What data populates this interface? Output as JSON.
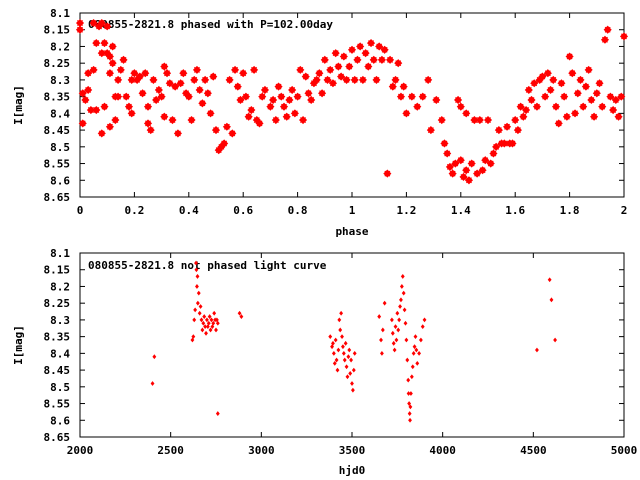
{
  "chart_data": [
    {
      "type": "scatter",
      "title": "080855-2821.8 phased with P=102.00day",
      "xlabel": "phase",
      "ylabel": "I[mag]",
      "xlim": [
        0,
        2
      ],
      "ylim": [
        8.1,
        8.65
      ],
      "y_inverted": true,
      "grid": false,
      "color": "#ff0000",
      "marker": "star",
      "x_ticks": [
        "0",
        "0.2",
        "0.4",
        "0.6",
        "0.8",
        "1",
        "1.2",
        "1.4",
        "1.6",
        "1.8",
        "2"
      ],
      "y_ticks": [
        "8.1",
        "8.15",
        "8.2",
        "8.25",
        "8.3",
        "8.35",
        "8.4",
        "8.45",
        "8.5",
        "8.55",
        "8.6",
        "8.65"
      ],
      "points": [
        [
          0.0,
          8.13
        ],
        [
          0.0,
          8.15
        ],
        [
          0.01,
          8.34
        ],
        [
          0.01,
          8.43
        ],
        [
          0.02,
          8.36
        ],
        [
          0.03,
          8.28
        ],
        [
          0.03,
          8.33
        ],
        [
          0.04,
          8.39
        ],
        [
          0.05,
          8.13
        ],
        [
          0.05,
          8.27
        ],
        [
          0.06,
          8.19
        ],
        [
          0.06,
          8.39
        ],
        [
          0.07,
          8.14
        ],
        [
          0.08,
          8.46
        ],
        [
          0.08,
          8.13
        ],
        [
          0.08,
          8.22
        ],
        [
          0.09,
          8.19
        ],
        [
          0.09,
          8.38
        ],
        [
          0.1,
          8.14
        ],
        [
          0.1,
          8.22
        ],
        [
          0.11,
          8.23
        ],
        [
          0.11,
          8.28
        ],
        [
          0.11,
          8.44
        ],
        [
          0.12,
          8.2
        ],
        [
          0.12,
          8.25
        ],
        [
          0.13,
          8.35
        ],
        [
          0.13,
          8.42
        ],
        [
          0.14,
          8.3
        ],
        [
          0.14,
          8.35
        ],
        [
          0.15,
          8.27
        ],
        [
          0.16,
          8.24
        ],
        [
          0.17,
          8.35
        ],
        [
          0.18,
          8.38
        ],
        [
          0.19,
          8.4
        ],
        [
          0.19,
          8.3
        ],
        [
          0.2,
          8.28
        ],
        [
          0.21,
          8.3
        ],
        [
          0.22,
          8.29
        ],
        [
          0.23,
          8.34
        ],
        [
          0.24,
          8.28
        ],
        [
          0.25,
          8.38
        ],
        [
          0.25,
          8.43
        ],
        [
          0.26,
          8.45
        ],
        [
          0.27,
          8.3
        ],
        [
          0.28,
          8.36
        ],
        [
          0.29,
          8.33
        ],
        [
          0.3,
          8.35
        ],
        [
          0.31,
          8.26
        ],
        [
          0.31,
          8.41
        ],
        [
          0.32,
          8.28
        ],
        [
          0.33,
          8.31
        ],
        [
          0.34,
          8.42
        ],
        [
          0.35,
          8.32
        ],
        [
          0.36,
          8.46
        ],
        [
          0.37,
          8.31
        ],
        [
          0.38,
          8.28
        ],
        [
          0.39,
          8.34
        ],
        [
          0.4,
          8.35
        ],
        [
          0.41,
          8.42
        ],
        [
          0.42,
          8.3
        ],
        [
          0.43,
          8.27
        ],
        [
          0.44,
          8.33
        ],
        [
          0.45,
          8.37
        ],
        [
          0.46,
          8.3
        ],
        [
          0.47,
          8.34
        ],
        [
          0.48,
          8.4
        ],
        [
          0.49,
          8.29
        ],
        [
          0.5,
          8.45
        ],
        [
          0.51,
          8.51
        ],
        [
          0.52,
          8.5
        ],
        [
          0.53,
          8.49
        ],
        [
          0.54,
          8.44
        ],
        [
          0.55,
          8.3
        ],
        [
          0.56,
          8.46
        ],
        [
          0.57,
          8.27
        ],
        [
          0.58,
          8.32
        ],
        [
          0.59,
          8.36
        ],
        [
          0.6,
          8.28
        ],
        [
          0.61,
          8.35
        ],
        [
          0.62,
          8.41
        ],
        [
          0.63,
          8.39
        ],
        [
          0.64,
          8.27
        ],
        [
          0.65,
          8.42
        ],
        [
          0.66,
          8.43
        ],
        [
          0.67,
          8.35
        ],
        [
          0.68,
          8.33
        ],
        [
          0.7,
          8.38
        ],
        [
          0.71,
          8.36
        ],
        [
          0.72,
          8.42
        ],
        [
          0.73,
          8.32
        ],
        [
          0.74,
          8.35
        ],
        [
          0.75,
          8.38
        ],
        [
          0.76,
          8.41
        ],
        [
          0.77,
          8.36
        ],
        [
          0.78,
          8.33
        ],
        [
          0.79,
          8.4
        ],
        [
          0.8,
          8.35
        ],
        [
          0.81,
          8.27
        ],
        [
          0.82,
          8.42
        ],
        [
          0.83,
          8.29
        ],
        [
          0.84,
          8.34
        ],
        [
          0.85,
          8.36
        ],
        [
          0.86,
          8.31
        ],
        [
          0.87,
          8.3
        ],
        [
          0.88,
          8.28
        ],
        [
          0.89,
          8.34
        ],
        [
          0.9,
          8.24
        ],
        [
          0.91,
          8.3
        ],
        [
          0.92,
          8.27
        ],
        [
          0.93,
          8.31
        ],
        [
          0.94,
          8.22
        ],
        [
          0.95,
          8.26
        ],
        [
          0.96,
          8.29
        ],
        [
          0.97,
          8.23
        ],
        [
          0.98,
          8.3
        ],
        [
          0.99,
          8.26
        ],
        [
          1.0,
          8.21
        ],
        [
          1.01,
          8.3
        ],
        [
          1.02,
          8.24
        ],
        [
          1.03,
          8.2
        ],
        [
          1.04,
          8.3
        ],
        [
          1.05,
          8.22
        ],
        [
          1.06,
          8.26
        ],
        [
          1.07,
          8.19
        ],
        [
          1.08,
          8.24
        ],
        [
          1.09,
          8.3
        ],
        [
          1.1,
          8.2
        ],
        [
          1.11,
          8.24
        ],
        [
          1.12,
          8.21
        ],
        [
          1.13,
          8.58
        ],
        [
          1.14,
          8.24
        ],
        [
          1.15,
          8.32
        ],
        [
          1.16,
          8.3
        ],
        [
          1.17,
          8.25
        ],
        [
          1.18,
          8.35
        ],
        [
          1.19,
          8.32
        ],
        [
          1.2,
          8.4
        ],
        [
          1.22,
          8.35
        ],
        [
          1.24,
          8.38
        ],
        [
          1.26,
          8.35
        ],
        [
          1.28,
          8.3
        ],
        [
          1.29,
          8.45
        ],
        [
          1.31,
          8.36
        ],
        [
          1.33,
          8.42
        ],
        [
          1.34,
          8.49
        ],
        [
          1.35,
          8.52
        ],
        [
          1.36,
          8.56
        ],
        [
          1.37,
          8.58
        ],
        [
          1.38,
          8.55
        ],
        [
          1.39,
          8.36
        ],
        [
          1.4,
          8.54
        ],
        [
          1.4,
          8.38
        ],
        [
          1.41,
          8.59
        ],
        [
          1.42,
          8.57
        ],
        [
          1.42,
          8.4
        ],
        [
          1.43,
          8.6
        ],
        [
          1.44,
          8.55
        ],
        [
          1.45,
          8.42
        ],
        [
          1.46,
          8.58
        ],
        [
          1.47,
          8.42
        ],
        [
          1.48,
          8.57
        ],
        [
          1.49,
          8.54
        ],
        [
          1.5,
          8.42
        ],
        [
          1.51,
          8.55
        ],
        [
          1.52,
          8.52
        ],
        [
          1.53,
          8.5
        ],
        [
          1.54,
          8.45
        ],
        [
          1.55,
          8.49
        ],
        [
          1.56,
          8.49
        ],
        [
          1.57,
          8.44
        ],
        [
          1.58,
          8.49
        ],
        [
          1.59,
          8.49
        ],
        [
          1.6,
          8.42
        ],
        [
          1.61,
          8.45
        ],
        [
          1.62,
          8.38
        ],
        [
          1.63,
          8.41
        ],
        [
          1.64,
          8.39
        ],
        [
          1.65,
          8.33
        ],
        [
          1.66,
          8.36
        ],
        [
          1.67,
          8.31
        ],
        [
          1.68,
          8.38
        ],
        [
          1.69,
          8.3
        ],
        [
          1.7,
          8.29
        ],
        [
          1.71,
          8.35
        ],
        [
          1.72,
          8.28
        ],
        [
          1.73,
          8.33
        ],
        [
          1.74,
          8.3
        ],
        [
          1.75,
          8.38
        ],
        [
          1.76,
          8.43
        ],
        [
          1.77,
          8.31
        ],
        [
          1.78,
          8.35
        ],
        [
          1.79,
          8.41
        ],
        [
          1.8,
          8.23
        ],
        [
          1.81,
          8.28
        ],
        [
          1.82,
          8.4
        ],
        [
          1.83,
          8.34
        ],
        [
          1.84,
          8.3
        ],
        [
          1.85,
          8.38
        ],
        [
          1.86,
          8.32
        ],
        [
          1.87,
          8.27
        ],
        [
          1.88,
          8.36
        ],
        [
          1.89,
          8.41
        ],
        [
          1.9,
          8.34
        ],
        [
          1.91,
          8.31
        ],
        [
          1.92,
          8.38
        ],
        [
          1.93,
          8.18
        ],
        [
          1.94,
          8.15
        ],
        [
          1.95,
          8.35
        ],
        [
          1.96,
          8.39
        ],
        [
          1.97,
          8.36
        ],
        [
          1.98,
          8.41
        ],
        [
          1.99,
          8.35
        ],
        [
          2.0,
          8.17
        ]
      ]
    },
    {
      "type": "scatter",
      "title": "080855-2821.8 not phased light curve",
      "xlabel": "hjd0",
      "ylabel": "I[mag]",
      "xlim": [
        2000,
        5000
      ],
      "ylim": [
        8.1,
        8.65
      ],
      "y_inverted": true,
      "grid": false,
      "color": "#ff0000",
      "marker": "diamond",
      "x_ticks": [
        "2000",
        "2500",
        "3000",
        "3500",
        "4000",
        "4500",
        "5000"
      ],
      "y_ticks": [
        "8.1",
        "8.15",
        "8.2",
        "8.25",
        "8.3",
        "8.35",
        "8.4",
        "8.45",
        "8.5",
        "8.55",
        "8.6",
        "8.65"
      ],
      "points": [
        [
          2400,
          8.49
        ],
        [
          2410,
          8.41
        ],
        [
          2620,
          8.36
        ],
        [
          2625,
          8.35
        ],
        [
          2630,
          8.3
        ],
        [
          2635,
          8.27
        ],
        [
          2640,
          8.13
        ],
        [
          2642,
          8.15
        ],
        [
          2645,
          8.2
        ],
        [
          2648,
          8.17
        ],
        [
          2650,
          8.25
        ],
        [
          2655,
          8.22
        ],
        [
          2660,
          8.28
        ],
        [
          2665,
          8.26
        ],
        [
          2670,
          8.3
        ],
        [
          2675,
          8.33
        ],
        [
          2680,
          8.31
        ],
        [
          2685,
          8.29
        ],
        [
          2690,
          8.32
        ],
        [
          2695,
          8.34
        ],
        [
          2700,
          8.3
        ],
        [
          2705,
          8.32
        ],
        [
          2710,
          8.31
        ],
        [
          2715,
          8.29
        ],
        [
          2720,
          8.33
        ],
        [
          2725,
          8.3
        ],
        [
          2730,
          8.32
        ],
        [
          2735,
          8.31
        ],
        [
          2740,
          8.28
        ],
        [
          2745,
          8.3
        ],
        [
          2750,
          8.33
        ],
        [
          2755,
          8.3
        ],
        [
          2760,
          8.58
        ],
        [
          2760,
          8.31
        ],
        [
          2880,
          8.28
        ],
        [
          2890,
          8.29
        ],
        [
          3380,
          8.35
        ],
        [
          3390,
          8.38
        ],
        [
          3395,
          8.37
        ],
        [
          3400,
          8.4
        ],
        [
          3405,
          8.43
        ],
        [
          3410,
          8.36
        ],
        [
          3415,
          8.42
        ],
        [
          3420,
          8.45
        ],
        [
          3425,
          8.39
        ],
        [
          3430,
          8.3
        ],
        [
          3435,
          8.33
        ],
        [
          3440,
          8.28
        ],
        [
          3445,
          8.35
        ],
        [
          3450,
          8.38
        ],
        [
          3455,
          8.4
        ],
        [
          3460,
          8.42
        ],
        [
          3465,
          8.37
        ],
        [
          3470,
          8.44
        ],
        [
          3475,
          8.47
        ],
        [
          3480,
          8.41
        ],
        [
          3485,
          8.39
        ],
        [
          3490,
          8.46
        ],
        [
          3495,
          8.42
        ],
        [
          3500,
          8.49
        ],
        [
          3505,
          8.51
        ],
        [
          3510,
          8.45
        ],
        [
          3515,
          8.4
        ],
        [
          3650,
          8.29
        ],
        [
          3660,
          8.36
        ],
        [
          3665,
          8.4
        ],
        [
          3670,
          8.33
        ],
        [
          3680,
          8.25
        ],
        [
          3720,
          8.3
        ],
        [
          3725,
          8.34
        ],
        [
          3730,
          8.37
        ],
        [
          3735,
          8.39
        ],
        [
          3740,
          8.32
        ],
        [
          3745,
          8.36
        ],
        [
          3750,
          8.28
        ],
        [
          3755,
          8.33
        ],
        [
          3760,
          8.3
        ],
        [
          3765,
          8.26
        ],
        [
          3770,
          8.24
        ],
        [
          3775,
          8.2
        ],
        [
          3780,
          8.17
        ],
        [
          3785,
          8.22
        ],
        [
          3790,
          8.27
        ],
        [
          3795,
          8.31
        ],
        [
          3800,
          8.36
        ],
        [
          3805,
          8.42
        ],
        [
          3810,
          8.48
        ],
        [
          3812,
          8.52
        ],
        [
          3815,
          8.55
        ],
        [
          3818,
          8.58
        ],
        [
          3820,
          8.6
        ],
        [
          3822,
          8.56
        ],
        [
          3825,
          8.52
        ],
        [
          3830,
          8.47
        ],
        [
          3835,
          8.44
        ],
        [
          3840,
          8.4
        ],
        [
          3845,
          8.38
        ],
        [
          3850,
          8.35
        ],
        [
          3855,
          8.39
        ],
        [
          3860,
          8.43
        ],
        [
          3870,
          8.4
        ],
        [
          3880,
          8.36
        ],
        [
          3890,
          8.32
        ],
        [
          3900,
          8.3
        ],
        [
          4520,
          8.39
        ],
        [
          4590,
          8.18
        ],
        [
          4600,
          8.24
        ],
        [
          4620,
          8.36
        ]
      ]
    }
  ]
}
